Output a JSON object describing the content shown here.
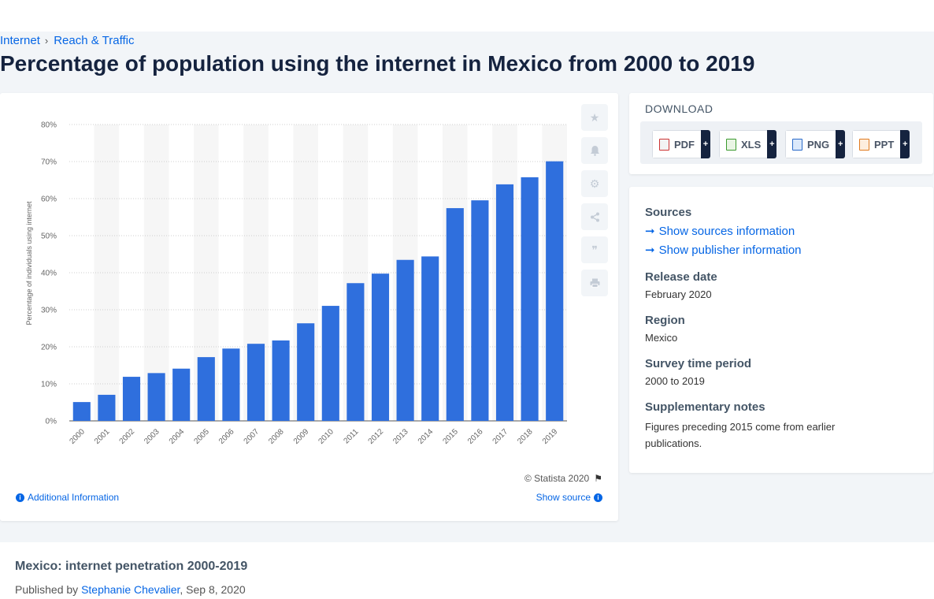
{
  "breadcrumb": {
    "item1": "Internet",
    "item2": "Reach & Traffic"
  },
  "page_title": "Percentage of population using the internet in Mexico from 2000 to 2019",
  "chart_card": {
    "credit": "© Statista 2020",
    "additional_info": "Additional Information",
    "show_source": "Show source"
  },
  "chart_data": {
    "type": "bar",
    "ylabel": "Percentage of individuals using internet",
    "ylim": [
      0,
      80
    ],
    "yticks": [
      "0%",
      "10%",
      "20%",
      "30%",
      "40%",
      "50%",
      "60%",
      "70%",
      "80%"
    ],
    "categories": [
      "2000",
      "2001",
      "2002",
      "2003",
      "2004",
      "2005",
      "2006",
      "2007",
      "2008",
      "2009",
      "2010",
      "2011",
      "2012",
      "2013",
      "2014",
      "2015",
      "2016",
      "2017",
      "2018",
      "2019"
    ],
    "values": [
      5.08,
      7.04,
      11.9,
      12.9,
      14.1,
      17.21,
      19.52,
      20.81,
      21.71,
      26.34,
      31.05,
      37.18,
      39.75,
      43.46,
      44.39,
      57.43,
      59.54,
      63.85,
      65.77,
      70.07
    ],
    "bar_color": "#2f6fdd",
    "stripe_color": "#f6f6f6",
    "grid": true
  },
  "toolbar": {
    "icons": [
      "star-icon",
      "bell-icon",
      "gear-icon",
      "share-icon",
      "quote-icon",
      "print-icon"
    ]
  },
  "download": {
    "heading": "DOWNLOAD",
    "pdf": "PDF",
    "xls": "XLS",
    "png": "PNG",
    "ppt": "PPT",
    "plus": "+"
  },
  "meta": {
    "sources_label": "Sources",
    "show_sources": "Show sources information",
    "show_publisher": "Show publisher information",
    "release_label": "Release date",
    "release_value": "February 2020",
    "region_label": "Region",
    "region_value": "Mexico",
    "survey_label": "Survey time period",
    "survey_value": "2000 to 2019",
    "notes_label": "Supplementary notes",
    "notes_value": "Figures preceding 2015 come from earlier publications."
  },
  "bottom": {
    "title": "Mexico: internet penetration 2000-2019",
    "published_by": "Published by",
    "author": "Stephanie Chevalier",
    "date": ", Sep 8, 2020"
  }
}
